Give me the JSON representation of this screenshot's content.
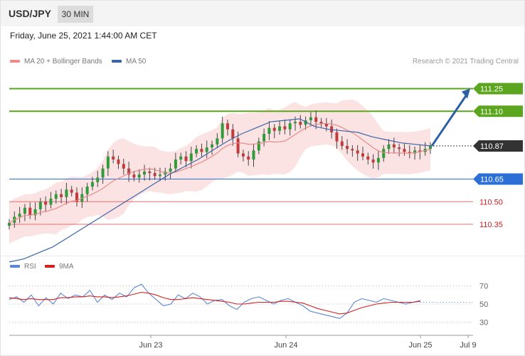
{
  "header": {
    "symbol": "USD/JPY",
    "timeframe": "30 MIN"
  },
  "datetime": "Friday, June 25, 2021 1:44:00 AM CET",
  "legend": {
    "ma20": {
      "label": "MA 20 + Bollinger Bands",
      "color": "#f08a8a"
    },
    "ma50": {
      "label": "MA 50",
      "color": "#3a66a8"
    }
  },
  "credit": "Research © 2021 Trading Central",
  "rsi_legend": {
    "rsi": {
      "label": "RSI",
      "color": "#5b86d6"
    },
    "ma9": {
      "label": "9MA",
      "color": "#d62020"
    }
  },
  "colors": {
    "resistance": "#5ba61e",
    "support": "#2c6fd6",
    "support_light": "#e07070",
    "current": "#333333",
    "candle_up": "#2f9b3a",
    "candle_down": "#c23a3a",
    "band_fill": "#fbdede"
  },
  "chart_data": [
    {
      "type": "candlestick",
      "title": "USD/JPY",
      "ylim": [
        110.18,
        111.38
      ],
      "levels": [
        {
          "value": 111.25,
          "label": "111.25",
          "kind": "resistance"
        },
        {
          "value": 111.1,
          "label": "111.10",
          "kind": "resistance"
        },
        {
          "value": 110.87,
          "label": "110.87",
          "kind": "current"
        },
        {
          "value": 110.65,
          "label": "110.65",
          "kind": "support"
        },
        {
          "value": 110.5,
          "label": "110.50",
          "kind": "support-light"
        },
        {
          "value": 110.35,
          "label": "110.35",
          "kind": "support-light"
        }
      ],
      "forecast_arrow": {
        "from": 110.87,
        "to": 111.25
      },
      "close_path": [
        110.36,
        110.4,
        110.42,
        110.46,
        110.41,
        110.45,
        110.5,
        110.48,
        110.52,
        110.55,
        110.53,
        110.58,
        110.56,
        110.5,
        110.55,
        110.6,
        110.63,
        110.66,
        110.72,
        110.8,
        110.78,
        110.75,
        110.72,
        110.68,
        110.66,
        110.68,
        110.7,
        110.69,
        110.67,
        110.68,
        110.7,
        110.72,
        110.78,
        110.8,
        110.77,
        110.82,
        110.85,
        110.83,
        110.86,
        110.88,
        110.92,
        111.02,
        110.98,
        110.92,
        110.82,
        110.8,
        110.78,
        110.84,
        110.9,
        110.95,
        110.99,
        110.97,
        111.0,
        110.98,
        111.02,
        111.03,
        111.01,
        111.04,
        111.06,
        111.03,
        111.02,
        111.0,
        110.96,
        110.9,
        110.87,
        110.85,
        110.84,
        110.82,
        110.8,
        110.78,
        110.76,
        110.79,
        110.85,
        110.88,
        110.86,
        110.85,
        110.83,
        110.82,
        110.84,
        110.83,
        110.85,
        110.87
      ],
      "ma50_path": [
        110.1,
        110.12,
        110.16,
        110.2,
        110.26,
        110.32,
        110.38,
        110.44,
        110.5,
        110.56,
        110.62,
        110.68,
        110.73,
        110.78,
        110.84,
        110.9,
        110.95,
        110.99,
        111.03,
        111.04,
        111.05,
        111.0,
        110.98,
        110.97,
        110.96,
        110.93,
        110.91,
        110.89,
        110.88,
        110.87
      ],
      "xlabels": [
        "Jun 23",
        "Jun 24",
        "Jun 25",
        "Jul 9"
      ]
    },
    {
      "type": "line",
      "title": "",
      "ylim": [
        20,
        80
      ],
      "yticks": [
        70,
        50,
        30
      ],
      "series": [
        {
          "name": "RSI",
          "values": [
            55,
            58,
            52,
            60,
            48,
            57,
            50,
            62,
            56,
            60,
            58,
            65,
            52,
            60,
            55,
            62,
            58,
            68,
            72,
            62,
            55,
            48,
            50,
            60,
            56,
            62,
            58,
            50,
            54,
            55,
            48,
            44,
            52,
            56,
            58,
            54,
            50,
            54,
            56,
            52,
            48,
            42,
            40,
            38,
            36,
            34,
            40,
            52,
            56,
            54,
            52,
            56,
            54,
            52,
            50,
            52,
            54
          ]
        },
        {
          "name": "9MA",
          "values": [
            57,
            56,
            55,
            56,
            55,
            55,
            55,
            57,
            57,
            58,
            58,
            59,
            58,
            58,
            57,
            58,
            59,
            61,
            63,
            62,
            60,
            57,
            55,
            55,
            56,
            57,
            56,
            55,
            54,
            53,
            52,
            50,
            50,
            51,
            52,
            52,
            52,
            53,
            53,
            52,
            51,
            48,
            45,
            43,
            41,
            39,
            40,
            43,
            46,
            48,
            50,
            51,
            52,
            52,
            52,
            52,
            53
          ]
        }
      ]
    }
  ]
}
